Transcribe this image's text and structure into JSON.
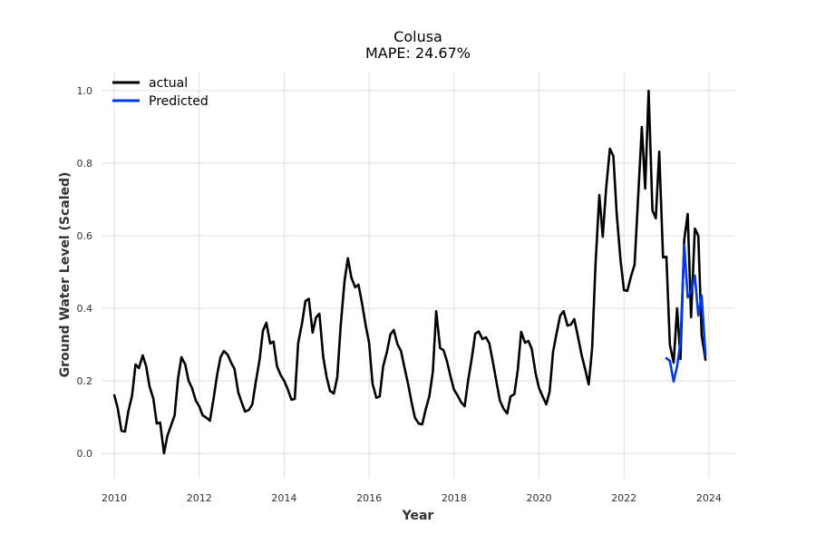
{
  "chart_data": {
    "type": "line",
    "title": "Colusa",
    "subtitle": "MAPE: 24.67%",
    "xlabel": "Year",
    "ylabel": "Ground Water Level (Scaled)",
    "xlim": [
      2009.7,
      2024.6
    ],
    "ylim": [
      -0.07,
      1.05
    ],
    "x_ticks": [
      2010,
      2012,
      2014,
      2016,
      2018,
      2020,
      2022,
      2024
    ],
    "x_tick_labels": [
      "2010",
      "2012",
      "2014",
      "2016",
      "2018",
      "2020",
      "2022",
      "2024"
    ],
    "y_ticks": [
      0.0,
      0.2,
      0.4,
      0.6,
      0.8,
      1.0
    ],
    "y_tick_labels": [
      "0.0",
      "0.2",
      "0.4",
      "0.6",
      "0.8",
      "1.0"
    ],
    "grid": true,
    "legend_position": "top-left",
    "legend": [
      "actual",
      "Predicted"
    ],
    "series": [
      {
        "name": "actual",
        "color": "#000000",
        "x": [
          2010.0,
          2010.08,
          2010.17,
          2010.25,
          2010.33,
          2010.42,
          2010.5,
          2010.58,
          2010.67,
          2010.75,
          2010.83,
          2010.92,
          2011.0,
          2011.08,
          2011.17,
          2011.25,
          2011.33,
          2011.42,
          2011.5,
          2011.58,
          2011.67,
          2011.75,
          2011.83,
          2011.92,
          2012.0,
          2012.08,
          2012.17,
          2012.25,
          2012.33,
          2012.42,
          2012.5,
          2012.58,
          2012.67,
          2012.75,
          2012.83,
          2012.92,
          2013.0,
          2013.08,
          2013.17,
          2013.25,
          2013.33,
          2013.42,
          2013.5,
          2013.58,
          2013.67,
          2013.75,
          2013.83,
          2013.92,
          2014.0,
          2014.08,
          2014.17,
          2014.25,
          2014.33,
          2014.42,
          2014.5,
          2014.58,
          2014.67,
          2014.75,
          2014.83,
          2014.92,
          2015.0,
          2015.08,
          2015.17,
          2015.25,
          2015.33,
          2015.42,
          2015.5,
          2015.58,
          2015.67,
          2015.75,
          2015.83,
          2015.92,
          2016.0,
          2016.08,
          2016.17,
          2016.25,
          2016.33,
          2016.42,
          2016.5,
          2016.58,
          2016.67,
          2016.75,
          2016.83,
          2016.92,
          2017.0,
          2017.08,
          2017.17,
          2017.25,
          2017.33,
          2017.42,
          2017.5,
          2017.58,
          2017.67,
          2017.75,
          2017.83,
          2017.92,
          2018.0,
          2018.08,
          2018.17,
          2018.25,
          2018.33,
          2018.42,
          2018.5,
          2018.58,
          2018.67,
          2018.75,
          2018.83,
          2018.92,
          2019.0,
          2019.08,
          2019.17,
          2019.25,
          2019.33,
          2019.42,
          2019.5,
          2019.58,
          2019.67,
          2019.75,
          2019.83,
          2019.92,
          2020.0,
          2020.08,
          2020.17,
          2020.25,
          2020.33,
          2020.42,
          2020.5,
          2020.58,
          2020.67,
          2020.75,
          2020.83,
          2020.92,
          2021.0,
          2021.08,
          2021.17,
          2021.25,
          2021.33,
          2021.42,
          2021.5,
          2021.58,
          2021.67,
          2021.75,
          2021.83,
          2021.92,
          2022.0,
          2022.08,
          2022.17,
          2022.25,
          2022.33,
          2022.42,
          2022.5,
          2022.58,
          2022.67,
          2022.75,
          2022.83,
          2022.92,
          2023.0,
          2023.08,
          2023.17,
          2023.25,
          2023.33,
          2023.42,
          2023.5,
          2023.58,
          2023.67,
          2023.75,
          2023.83,
          2023.92
        ],
        "y": [
          0.16,
          0.125,
          0.062,
          0.06,
          0.115,
          0.16,
          0.245,
          0.235,
          0.27,
          0.24,
          0.185,
          0.15,
          0.082,
          0.085,
          0.0,
          0.048,
          0.075,
          0.105,
          0.205,
          0.265,
          0.245,
          0.2,
          0.18,
          0.145,
          0.13,
          0.105,
          0.098,
          0.09,
          0.145,
          0.215,
          0.265,
          0.282,
          0.272,
          0.25,
          0.233,
          0.168,
          0.14,
          0.115,
          0.12,
          0.135,
          0.195,
          0.258,
          0.338,
          0.36,
          0.303,
          0.308,
          0.24,
          0.215,
          0.2,
          0.178,
          0.148,
          0.15,
          0.305,
          0.358,
          0.42,
          0.426,
          0.333,
          0.375,
          0.385,
          0.265,
          0.21,
          0.172,
          0.165,
          0.21,
          0.35,
          0.475,
          0.538,
          0.485,
          0.458,
          0.465,
          0.415,
          0.352,
          0.305,
          0.192,
          0.153,
          0.157,
          0.24,
          0.28,
          0.328,
          0.34,
          0.3,
          0.282,
          0.238,
          0.19,
          0.14,
          0.098,
          0.082,
          0.08,
          0.12,
          0.158,
          0.225,
          0.392,
          0.29,
          0.285,
          0.255,
          0.21,
          0.175,
          0.16,
          0.14,
          0.13,
          0.2,
          0.265,
          0.33,
          0.336,
          0.315,
          0.32,
          0.303,
          0.248,
          0.195,
          0.145,
          0.122,
          0.11,
          0.157,
          0.163,
          0.23,
          0.335,
          0.305,
          0.31,
          0.288,
          0.22,
          0.18,
          0.158,
          0.135,
          0.17,
          0.28,
          0.335,
          0.38,
          0.392,
          0.352,
          0.355,
          0.37,
          0.32,
          0.272,
          0.235,
          0.19,
          0.29,
          0.52,
          0.712,
          0.597,
          0.73,
          0.84,
          0.82,
          0.66,
          0.53,
          0.45,
          0.448,
          0.49,
          0.52,
          0.7,
          0.9,
          0.73,
          1.0,
          0.67,
          0.648,
          0.832,
          0.54,
          0.542,
          0.3,
          0.25,
          0.4,
          0.26,
          0.59,
          0.66,
          0.375,
          0.62,
          0.6,
          0.325,
          0.258
        ]
      },
      {
        "name": "Predicted",
        "color": "#0039e6",
        "x": [
          2023.0,
          2023.08,
          2023.17,
          2023.25,
          2023.33,
          2023.42,
          2023.5,
          2023.58,
          2023.67,
          2023.75,
          2023.83,
          2023.92
        ],
        "y": [
          0.262,
          0.255,
          0.198,
          0.24,
          0.305,
          0.575,
          0.43,
          0.445,
          0.49,
          0.38,
          0.435,
          0.27
        ]
      }
    ]
  }
}
